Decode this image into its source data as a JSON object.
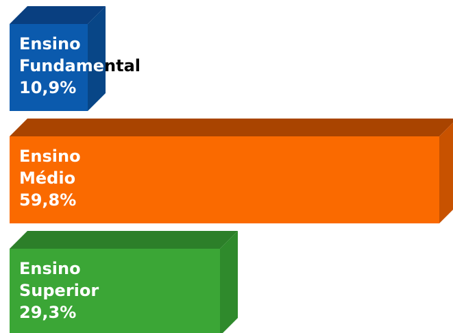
{
  "chart_data": {
    "type": "bar",
    "orientation": "horizontal",
    "style": "3d",
    "xlim": [
      0,
      59.8
    ],
    "bars": [
      {
        "line1": "Ensino",
        "line2": "Fundamental",
        "value_label": "10,9%",
        "value": 10.9,
        "color": "#0b5aad",
        "top_color": "#093f80",
        "side_color": "#084687"
      },
      {
        "line1": "Ensino",
        "line2": "Médio",
        "value_label": "59,8%",
        "value": 59.8,
        "color": "#fa6a00",
        "top_color": "#a94400",
        "side_color": "#c85200"
      },
      {
        "line1": "Ensino",
        "line2": "Superior",
        "value_label": "29,3%",
        "value": 29.3,
        "color": "#3ba636",
        "top_color": "#2c7f29",
        "side_color": "#2f8a2c"
      }
    ]
  }
}
